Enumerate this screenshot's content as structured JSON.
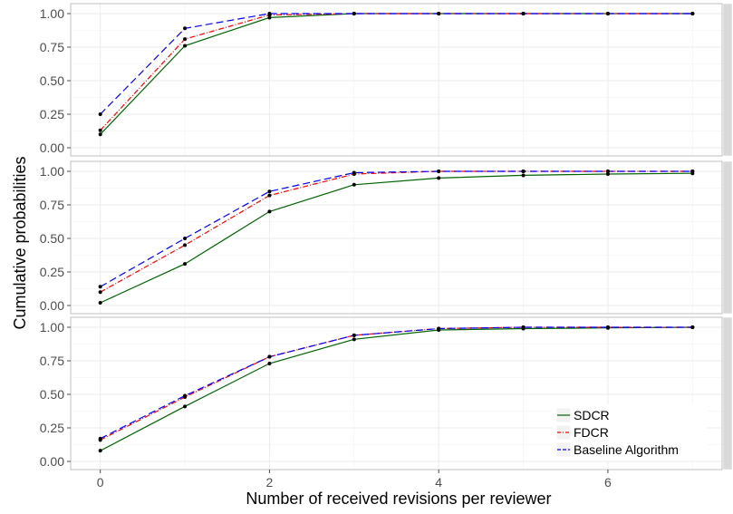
{
  "chart_data": {
    "type": "line",
    "xlabel": "Number of received revisions per reviewer",
    "ylabel": "Cumulative probabilities",
    "x": [
      0,
      1,
      2,
      3,
      4,
      5,
      6,
      7
    ],
    "xticks": [
      0,
      2,
      4,
      6
    ],
    "yticks": [
      0.0,
      0.25,
      0.5,
      0.75,
      1.0
    ],
    "ylim": [
      0,
      1
    ],
    "xlim": [
      -0.35,
      7.35
    ],
    "grid": true,
    "legend": {
      "placement": "bottom-right of last panel",
      "entries": [
        "SDCR",
        "FDCR",
        "Baseline Algorithm"
      ]
    },
    "colors": {
      "SDCR": "#006400",
      "FDCR": "#ff0000",
      "Baseline Algorithm": "#0000ff",
      "panel_background": "#ffffff",
      "grid": "#ebebeb",
      "strip": "#d9d9d9"
    },
    "panels": [
      {
        "strip_label": "",
        "series": [
          {
            "name": "SDCR",
            "values": [
              0.1,
              0.76,
              0.97,
              1.0,
              1.0,
              1.0,
              1.0,
              1.0
            ]
          },
          {
            "name": "FDCR",
            "values": [
              0.13,
              0.81,
              0.99,
              1.0,
              1.0,
              1.0,
              1.0,
              1.0
            ]
          },
          {
            "name": "Baseline Algorithm",
            "values": [
              0.25,
              0.89,
              1.0,
              1.0,
              1.0,
              1.0,
              1.0,
              1.0
            ]
          }
        ]
      },
      {
        "strip_label": "",
        "series": [
          {
            "name": "SDCR",
            "values": [
              0.02,
              0.31,
              0.7,
              0.9,
              0.95,
              0.97,
              0.98,
              0.985
            ]
          },
          {
            "name": "FDCR",
            "values": [
              0.1,
              0.45,
              0.82,
              0.98,
              1.0,
              1.0,
              1.0,
              1.0
            ]
          },
          {
            "name": "Baseline Algorithm",
            "values": [
              0.14,
              0.5,
              0.85,
              0.99,
              1.0,
              1.0,
              1.0,
              1.0
            ]
          }
        ]
      },
      {
        "strip_label": "",
        "series": [
          {
            "name": "SDCR",
            "values": [
              0.08,
              0.41,
              0.73,
              0.91,
              0.98,
              0.99,
              0.995,
              1.0
            ]
          },
          {
            "name": "FDCR",
            "values": [
              0.16,
              0.48,
              0.78,
              0.94,
              0.99,
              1.0,
              1.0,
              1.0
            ]
          },
          {
            "name": "Baseline Algorithm",
            "values": [
              0.17,
              0.49,
              0.78,
              0.94,
              0.99,
              1.0,
              1.0,
              1.0
            ]
          }
        ]
      }
    ]
  }
}
